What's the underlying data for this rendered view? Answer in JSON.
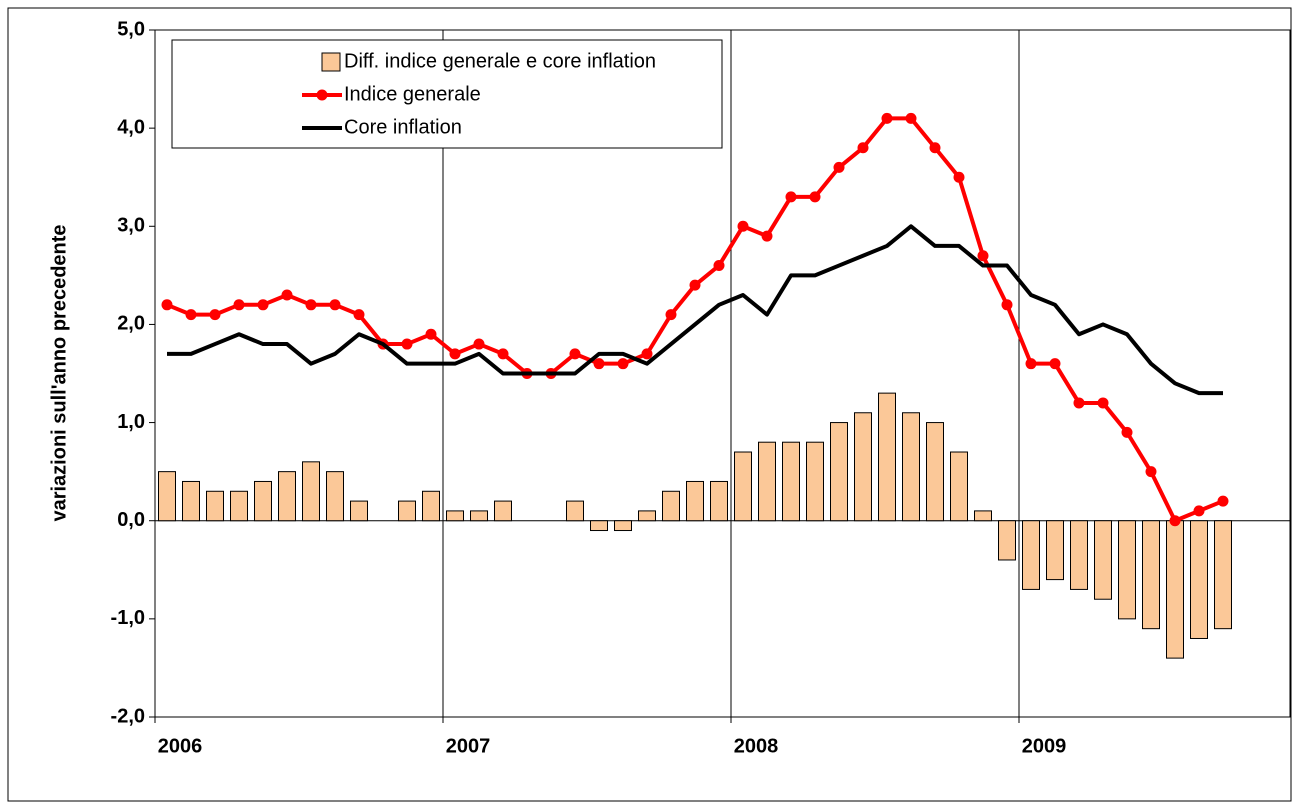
{
  "chart_data": {
    "type": "bar_line",
    "y_label": "variazioni sull'anno precedente",
    "categories": [
      "2006",
      null,
      null,
      null,
      null,
      null,
      null,
      null,
      null,
      null,
      null,
      null,
      "2007",
      null,
      null,
      null,
      null,
      null,
      null,
      null,
      null,
      null,
      null,
      null,
      "2008",
      null,
      null,
      null,
      null,
      null,
      null,
      null,
      null,
      null,
      null,
      null,
      "2009",
      null,
      null,
      null,
      null,
      null,
      null,
      null,
      null,
      null,
      null,
      null
    ],
    "series": [
      {
        "name": "Diff. indice generale e core inflation",
        "kind": "bar",
        "color": "#fbc898",
        "values": [
          0.5,
          0.4,
          0.3,
          0.3,
          0.4,
          0.5,
          0.6,
          0.5,
          0.2,
          0.0,
          0.2,
          0.3,
          0.1,
          0.1,
          0.2,
          0.0,
          0.0,
          0.2,
          -0.1,
          -0.1,
          0.1,
          0.3,
          0.4,
          0.4,
          0.7,
          0.8,
          0.8,
          0.8,
          1.0,
          1.1,
          1.3,
          1.1,
          1.0,
          0.7,
          0.1,
          -0.4,
          -0.7,
          -0.6,
          -0.7,
          -0.8,
          -1.0,
          -1.1,
          -1.4,
          -1.2,
          -1.1,
          null,
          null,
          null
        ]
      },
      {
        "name": "Indice generale",
        "kind": "line",
        "markers": true,
        "color": "#ff0000",
        "values": [
          2.2,
          2.1,
          2.1,
          2.2,
          2.2,
          2.3,
          2.2,
          2.2,
          2.1,
          1.8,
          1.8,
          1.9,
          1.7,
          1.8,
          1.7,
          1.5,
          1.5,
          1.7,
          1.6,
          1.6,
          1.7,
          2.1,
          2.4,
          2.6,
          3.0,
          2.9,
          3.3,
          3.3,
          3.6,
          3.8,
          4.1,
          4.1,
          3.8,
          3.5,
          2.7,
          2.2,
          1.6,
          1.6,
          1.2,
          1.2,
          0.9,
          0.5,
          0.0,
          0.1,
          0.2,
          null,
          null,
          null
        ]
      },
      {
        "name": "Core inflation",
        "kind": "line",
        "markers": false,
        "color": "#000000",
        "values": [
          1.7,
          1.7,
          1.8,
          1.9,
          1.8,
          1.8,
          1.6,
          1.7,
          1.9,
          1.8,
          1.6,
          1.6,
          1.6,
          1.7,
          1.5,
          1.5,
          1.5,
          1.5,
          1.7,
          1.7,
          1.6,
          1.8,
          2.0,
          2.2,
          2.3,
          2.1,
          2.5,
          2.5,
          2.6,
          2.7,
          2.8,
          3.0,
          2.8,
          2.8,
          2.6,
          2.6,
          2.3,
          2.2,
          1.9,
          2.0,
          1.9,
          1.6,
          1.4,
          1.3,
          1.3,
          null,
          null,
          null
        ]
      }
    ],
    "ylim": [
      -2,
      5
    ],
    "yticks": [
      {
        "value": -2,
        "label": "-2,0"
      },
      {
        "value": -1,
        "label": "-1,0"
      },
      {
        "value": 0,
        "label": "0,0"
      },
      {
        "value": 1,
        "label": "1,0"
      },
      {
        "value": 2,
        "label": "2,0"
      },
      {
        "value": 3,
        "label": "3,0"
      },
      {
        "value": 4,
        "label": "4,0"
      },
      {
        "value": 5,
        "label": "5,0"
      }
    ],
    "grid": true,
    "legend": "upper left"
  }
}
